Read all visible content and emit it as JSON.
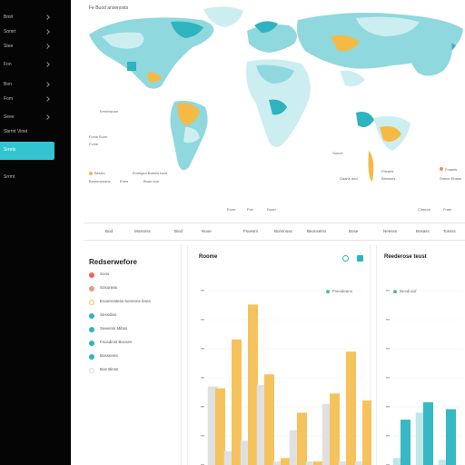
{
  "sidebar": {
    "items": [
      {
        "label": "Bmrt"
      },
      {
        "label": "Somrt"
      },
      {
        "label": "Stee"
      },
      {
        "label": "Fon"
      },
      {
        "label": "Bon"
      },
      {
        "label": "Fom"
      },
      {
        "label": "Seee"
      },
      {
        "label": "Sbrrnt Vinet"
      },
      {
        "label": "Srrets"
      },
      {
        "label": "Srrmt"
      }
    ],
    "active_index": 8,
    "accent": "#32c4d0"
  },
  "map": {
    "title": "Fe Buod ansenosts",
    "annotations": [
      {
        "text": "Emnhisnan"
      },
      {
        "text": "Fonis Soon"
      },
      {
        "text": "Fonis"
      },
      {
        "text": "Besrto"
      },
      {
        "text": "Eomlgen Boenis bont"
      },
      {
        "text": "Bomenonans"
      },
      {
        "text": "Enes"
      },
      {
        "text": "Boan bon"
      },
      {
        "text": "Sorurt"
      },
      {
        "text": "Fbearis"
      },
      {
        "text": "Gaans dod"
      },
      {
        "text": "Bensses"
      },
      {
        "text": "Fmanis"
      },
      {
        "text": "Sneoe Ebase"
      },
      {
        "text": "Eone"
      },
      {
        "text": "Foe"
      },
      {
        "text": "Doorr"
      },
      {
        "text": "Cinenur"
      },
      {
        "text": "Fnae"
      }
    ],
    "colors": {
      "land_light": "#cdeef0",
      "land_mid": "#8fd8dd",
      "land_dark": "#2fb3bf",
      "highlight": "#f5b945",
      "ocean": "#ffffff"
    }
  },
  "table_header": {
    "columns": [
      "Bod",
      "Mossnss",
      "Biod",
      "Nooe",
      "Fsoesm",
      "Bonsnoss",
      "Beonsetns",
      "Bose",
      "Neesss",
      "Bosass",
      "Tossss"
    ]
  },
  "left_panel": {
    "title": "Redserwefore",
    "items": [
      {
        "label": "Soos",
        "color": "#e86a5a"
      },
      {
        "label": "Sosoreas",
        "color": "#e89a86"
      },
      {
        "label": "Eooernnitess bonnnns bnes",
        "color": "#f0c55a"
      },
      {
        "label": "Sessdiss",
        "color": "#2fb3bf"
      },
      {
        "label": "Seeeinsi Mibss",
        "color": "#2fb3bf"
      },
      {
        "label": "Fsosdinst Bncses",
        "color": "#2fb3bf"
      },
      {
        "label": "Bossenes",
        "color": "#2fb3bf"
      },
      {
        "label": "Boe Binss",
        "color": "#dcdcdc"
      }
    ]
  },
  "mid_panel": {
    "title": "Roome",
    "legend": "Fsesdeans",
    "icon_colors": [
      "#2fb3bf",
      "#2fb3bf"
    ]
  },
  "right_panel": {
    "title": "Reederose teust",
    "legend": "Besdnssf"
  },
  "chart_data": [
    {
      "type": "bar",
      "title": "Roome",
      "legend": [
        "Fsesdeans"
      ],
      "ylim": [
        0,
        100
      ],
      "grid": true,
      "series": [
        {
          "name": "Fsesdeans",
          "values": [
            44,
            72,
            92,
            52,
            4,
            30,
            2,
            41,
            65,
            37
          ]
        },
        {
          "values": [
            45,
            8,
            14,
            46,
            2,
            20,
            2,
            35,
            2,
            2
          ]
        }
      ],
      "colors": [
        "#f5c35c",
        "#e0e0e0"
      ]
    },
    {
      "type": "bar",
      "title": "Reederose teust",
      "legend": [
        "Besdnssf"
      ],
      "ylim": [
        0,
        100
      ],
      "grid": true,
      "series": [
        {
          "name": "Besdnssf",
          "values": [
            26,
            36,
            32
          ]
        },
        {
          "values": [
            4,
            30,
            3
          ]
        }
      ],
      "colors": [
        "#37b8c3",
        "#bfe7ea"
      ]
    }
  ]
}
